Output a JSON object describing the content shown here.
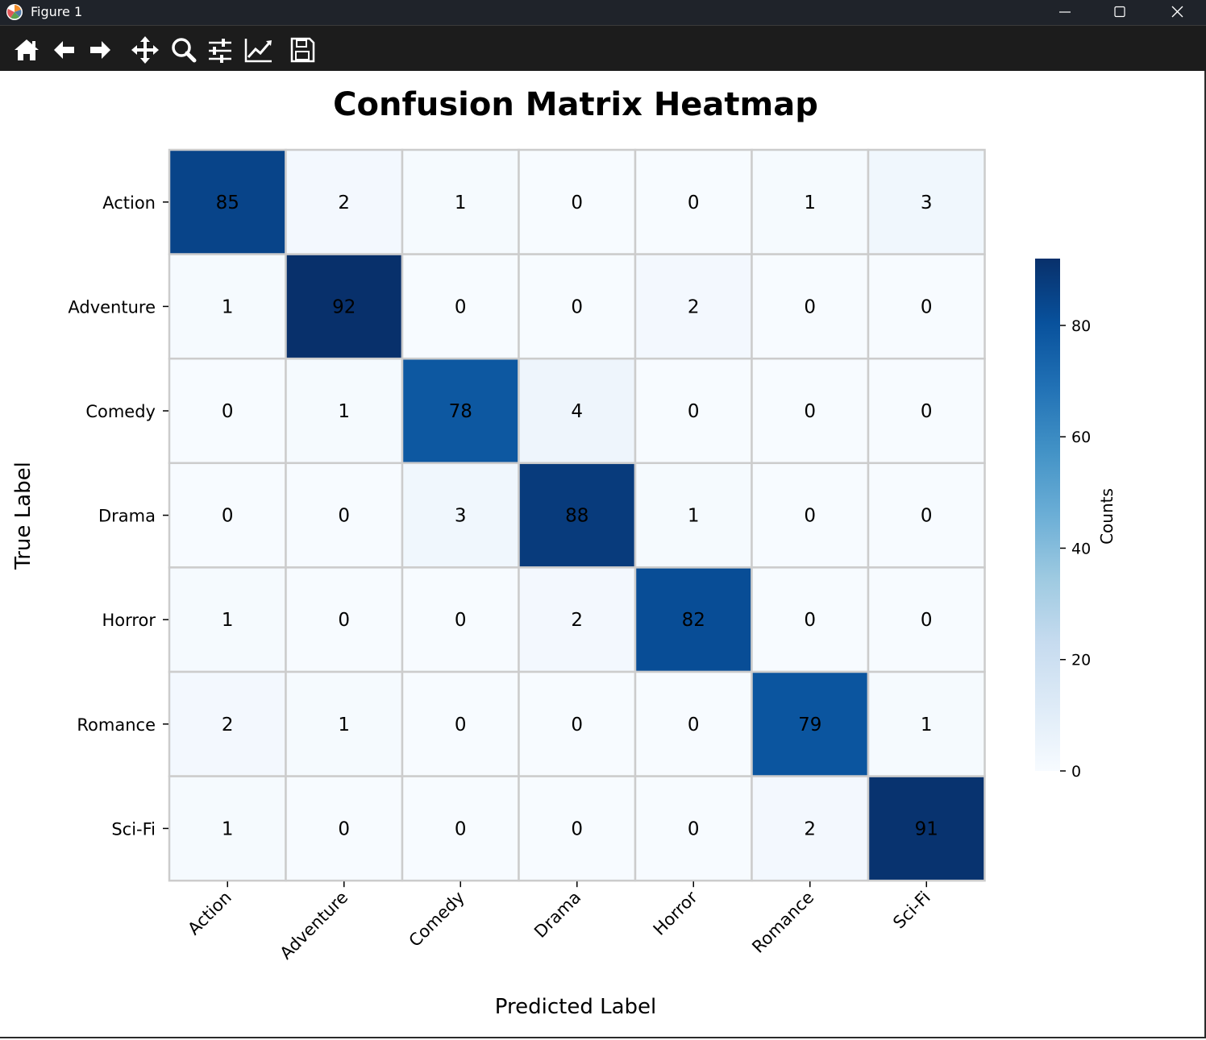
{
  "window": {
    "title": "Figure 1",
    "icon": "matplotlib-logo-icon",
    "controls": [
      "minimize-icon",
      "maximize-icon",
      "close-icon"
    ]
  },
  "toolbar": {
    "tools": [
      {
        "name": "home",
        "icon": "home-icon"
      },
      {
        "name": "back",
        "icon": "arrow-left-icon"
      },
      {
        "name": "forward",
        "icon": "arrow-right-icon"
      },
      {
        "name": "pan",
        "icon": "move-icon"
      },
      {
        "name": "zoom",
        "icon": "zoom-icon"
      },
      {
        "name": "configure-subplots",
        "icon": "sliders-icon"
      },
      {
        "name": "edit-axis",
        "icon": "line-chart-icon"
      },
      {
        "name": "save",
        "icon": "save-icon"
      }
    ]
  },
  "chart_data": {
    "type": "heatmap",
    "title": "Confusion Matrix Heatmap",
    "xlabel": "Predicted Label",
    "ylabel": "True Label",
    "x_categories": [
      "Action",
      "Adventure",
      "Comedy",
      "Drama",
      "Horror",
      "Romance",
      "Sci-Fi"
    ],
    "y_categories": [
      "Action",
      "Adventure",
      "Comedy",
      "Drama",
      "Horror",
      "Romance",
      "Sci-Fi"
    ],
    "values": [
      [
        85,
        2,
        1,
        0,
        0,
        1,
        3
      ],
      [
        1,
        92,
        0,
        0,
        2,
        0,
        0
      ],
      [
        0,
        1,
        78,
        4,
        0,
        0,
        0
      ],
      [
        0,
        0,
        3,
        88,
        1,
        0,
        0
      ],
      [
        1,
        0,
        0,
        2,
        82,
        0,
        0
      ],
      [
        2,
        1,
        0,
        0,
        0,
        79,
        1
      ],
      [
        1,
        0,
        0,
        0,
        0,
        2,
        91
      ]
    ],
    "colormap": "Blues",
    "colorbar": {
      "label": "Counts",
      "range": [
        0,
        92
      ],
      "ticks": [
        0,
        20,
        40,
        60,
        80
      ]
    },
    "annotations": true,
    "x_tick_rotation": 45
  }
}
